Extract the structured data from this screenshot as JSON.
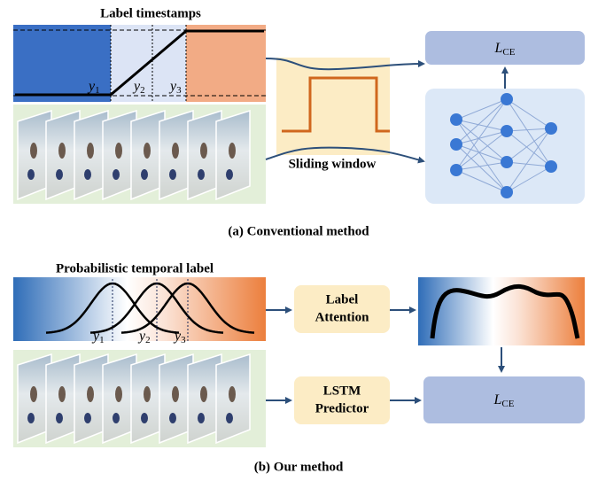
{
  "top": {
    "title": "Label timestamps",
    "y_labels": [
      {
        "var": "y",
        "sub": "1"
      },
      {
        "var": "y",
        "sub": "2"
      },
      {
        "var": "y",
        "sub": "3"
      }
    ],
    "window_label": "Sliding window",
    "loss": {
      "var": "L",
      "sub": "CE"
    },
    "caption": "(a) Conventional method"
  },
  "bottom": {
    "title": "Probabilistic temporal label",
    "y_labels": [
      {
        "var": "y",
        "sub": "1"
      },
      {
        "var": "y",
        "sub": "2"
      },
      {
        "var": "y",
        "sub": "3"
      }
    ],
    "attention": [
      "Label",
      "Attention"
    ],
    "predictor": [
      "LSTM",
      "Predictor"
    ],
    "loss": {
      "var": "L",
      "sub": "CE"
    },
    "caption": "(b) Our method"
  }
}
